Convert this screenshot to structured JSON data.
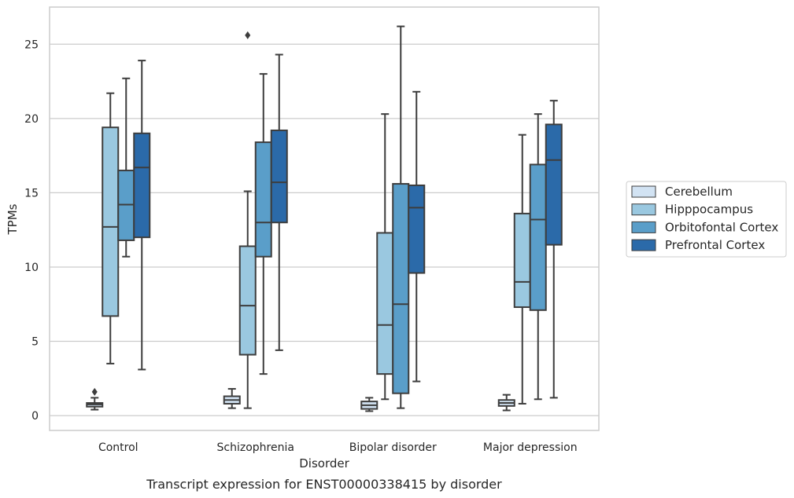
{
  "caption": "Transcript expression for ENST00000338415 by disorder",
  "chart_data": {
    "type": "box",
    "xlabel": "Disorder",
    "ylabel": "TPMs",
    "ylim": [
      -1,
      27.5
    ],
    "yticks": [
      0,
      5,
      10,
      15,
      20,
      25
    ],
    "grid": "horizontal",
    "legend_position": "right",
    "categories": [
      "Control",
      "Schizophrenia",
      "Bipolar disorder",
      "Major depression"
    ],
    "series": [
      {
        "name": "Cerebellum",
        "color": "#d2e3f3",
        "boxes": [
          {
            "whisker_low": 0.4,
            "q1": 0.6,
            "median": 0.75,
            "q3": 0.85,
            "whisker_high": 1.2,
            "outliers": [
              1.6
            ]
          },
          {
            "whisker_low": 0.5,
            "q1": 0.8,
            "median": 1.05,
            "q3": 1.3,
            "whisker_high": 1.8,
            "outliers": []
          },
          {
            "whisker_low": 0.3,
            "q1": 0.45,
            "median": 0.7,
            "q3": 0.95,
            "whisker_high": 1.2,
            "outliers": []
          },
          {
            "whisker_low": 0.35,
            "q1": 0.65,
            "median": 0.85,
            "q3": 1.05,
            "whisker_high": 1.4,
            "outliers": []
          }
        ]
      },
      {
        "name": "Hipppocampus",
        "color": "#9ac8e0",
        "boxes": [
          {
            "whisker_low": 3.5,
            "q1": 6.7,
            "median": 12.7,
            "q3": 19.4,
            "whisker_high": 21.7,
            "outliers": []
          },
          {
            "whisker_low": 0.5,
            "q1": 4.1,
            "median": 7.4,
            "q3": 11.4,
            "whisker_high": 15.1,
            "outliers": [
              25.6
            ]
          },
          {
            "whisker_low": 1.1,
            "q1": 2.8,
            "median": 6.1,
            "q3": 12.3,
            "whisker_high": 20.3,
            "outliers": []
          },
          {
            "whisker_low": 0.8,
            "q1": 7.3,
            "median": 9.0,
            "q3": 13.6,
            "whisker_high": 18.9,
            "outliers": []
          }
        ]
      },
      {
        "name": "Orbitofontal Cortex",
        "color": "#5a9ec9",
        "boxes": [
          {
            "whisker_low": 10.7,
            "q1": 11.8,
            "median": 14.2,
            "q3": 16.5,
            "whisker_high": 22.7,
            "outliers": []
          },
          {
            "whisker_low": 2.8,
            "q1": 10.7,
            "median": 13.0,
            "q3": 18.4,
            "whisker_high": 23.0,
            "outliers": []
          },
          {
            "whisker_low": 0.5,
            "q1": 1.5,
            "median": 7.5,
            "q3": 15.6,
            "whisker_high": 26.2,
            "outliers": []
          },
          {
            "whisker_low": 1.1,
            "q1": 7.1,
            "median": 13.2,
            "q3": 16.9,
            "whisker_high": 20.3,
            "outliers": []
          }
        ]
      },
      {
        "name": "Prefrontal Cortex",
        "color": "#2b6aa9",
        "boxes": [
          {
            "whisker_low": 3.1,
            "q1": 12.0,
            "median": 16.7,
            "q3": 19.0,
            "whisker_high": 23.9,
            "outliers": []
          },
          {
            "whisker_low": 4.4,
            "q1": 13.0,
            "median": 15.7,
            "q3": 19.2,
            "whisker_high": 24.3,
            "outliers": []
          },
          {
            "whisker_low": 2.3,
            "q1": 9.6,
            "median": 14.0,
            "q3": 15.5,
            "whisker_high": 21.8,
            "outliers": []
          },
          {
            "whisker_low": 1.2,
            "q1": 11.5,
            "median": 17.2,
            "q3": 19.6,
            "whisker_high": 21.2,
            "outliers": []
          }
        ]
      }
    ]
  }
}
